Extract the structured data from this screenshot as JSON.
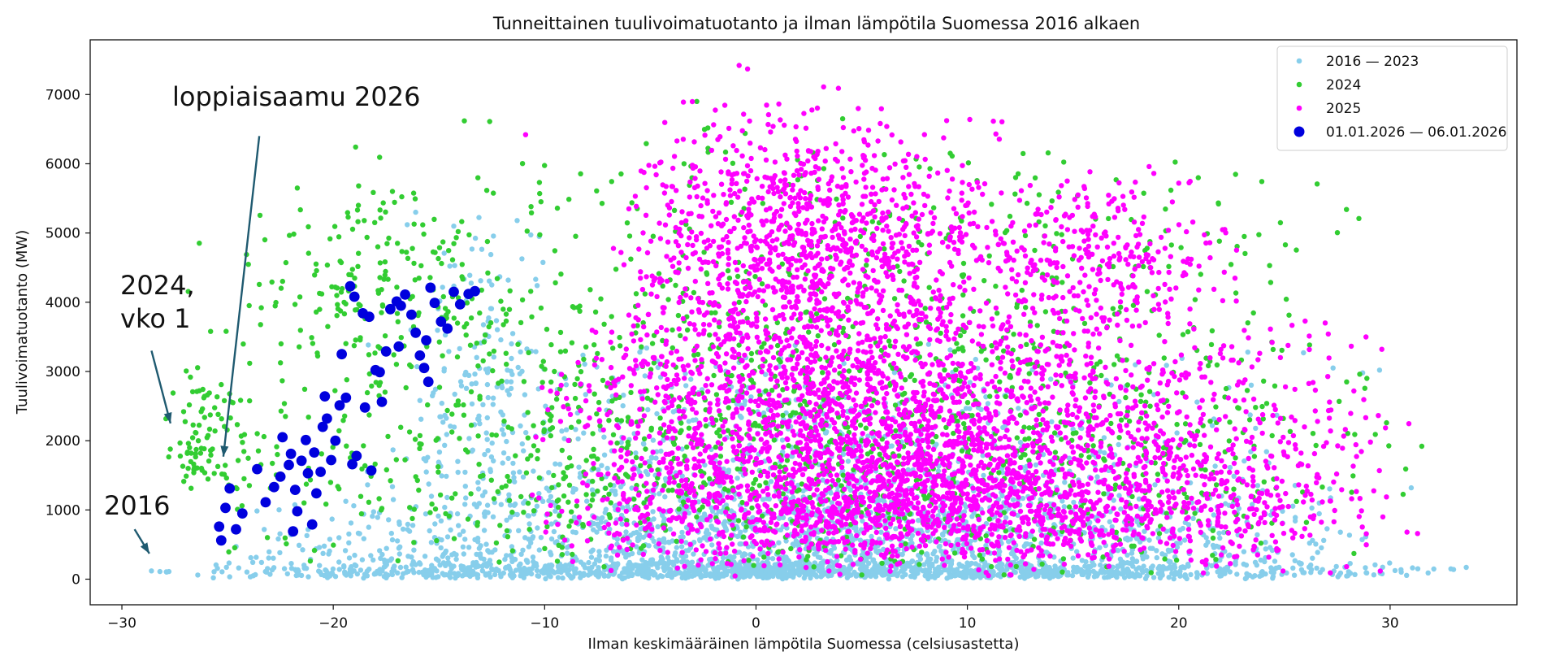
{
  "chart_data": {
    "type": "scatter",
    "title": "Tunneittainen tuulivoimatuotanto ja ilman lämpötila Suomessa 2016 alkaen",
    "xlabel": "Ilman keskimääräinen lämpötila Suomessa (celsiusastetta)",
    "ylabel": "Tuulivoimatuotanto (MW)",
    "xlim": [
      -31.5,
      36
    ],
    "ylim": [
      -370,
      7790
    ],
    "xticks": [
      -30,
      -20,
      -10,
      0,
      10,
      20,
      30
    ],
    "yticks": [
      0,
      1000,
      2000,
      3000,
      4000,
      5000,
      6000,
      7000
    ],
    "grid": false,
    "legend_position": "top-right",
    "series": [
      {
        "name": "2016 — 2023",
        "color": "#87ceeb",
        "marker_size": "small",
        "clusters": [
          {
            "x_range": [
              -28.5,
              33.5
            ],
            "y_range": [
              0,
              300
            ],
            "count": 1300,
            "x_mode": 2,
            "y_mode": 60
          },
          {
            "x_range": [
              -26,
              31
            ],
            "y_range": [
              0,
              1500
            ],
            "count": 1100,
            "x_mode": 3,
            "y_mode": 300
          },
          {
            "x_range": [
              -20,
              28
            ],
            "y_range": [
              100,
              3600
            ],
            "count": 950,
            "x_mode": 2,
            "y_mode": 900
          },
          {
            "x_range": [
              -17,
              -9
            ],
            "y_range": [
              1000,
              5300
            ],
            "count": 150,
            "x_mode": -13,
            "y_mode": 3000
          }
        ],
        "points": [
          {
            "x": -28.2,
            "y": 110
          },
          {
            "x": -28.6,
            "y": 120
          },
          {
            "x": -27.9,
            "y": 105
          },
          {
            "x": -16.1,
            "y": 5300
          },
          {
            "x": -16.5,
            "y": 5120
          },
          {
            "x": 29.5,
            "y": 3020
          },
          {
            "x": 33.6,
            "y": 170
          },
          {
            "x": 33.0,
            "y": 140
          },
          {
            "x": 31.0,
            "y": 1320
          },
          {
            "x": 28.7,
            "y": 2980
          },
          {
            "x": 27.3,
            "y": 3050
          },
          {
            "x": 25.9,
            "y": 3270
          },
          {
            "x": -12.5,
            "y": 4250
          },
          {
            "x": -11.3,
            "y": 5180
          }
        ]
      },
      {
        "name": "2024",
        "color": "#32cd32",
        "marker_size": "small",
        "clusters": [
          {
            "x_range": [
              -27.5,
              31.5
            ],
            "y_range": [
              0,
              6700
            ],
            "count": 1700,
            "x_mode": 3,
            "y_mode": 1200
          },
          {
            "x_range": [
              -28,
              -23
            ],
            "y_range": [
              1200,
              3200
            ],
            "count": 90,
            "x_mode": -26.5,
            "y_mode": 1700
          },
          {
            "x_range": [
              -23,
              -13
            ],
            "y_range": [
              2500,
              5800
            ],
            "count": 130,
            "x_mode": -18,
            "y_mode": 4200
          }
        ],
        "points": [
          {
            "x": -21.7,
            "y": 5650
          },
          {
            "x": -18.8,
            "y": 5680
          },
          {
            "x": -17.2,
            "y": 5600
          },
          {
            "x": -13.8,
            "y": 6620
          },
          {
            "x": -12.6,
            "y": 6610
          },
          {
            "x": -2.8,
            "y": 6900
          },
          {
            "x": 4.1,
            "y": 6650
          },
          {
            "x": 31.5,
            "y": 1920
          },
          {
            "x": 23.1,
            "y": 4950
          },
          {
            "x": 24.3,
            "y": 4530
          }
        ]
      },
      {
        "name": "2025",
        "color": "#ff00ff",
        "marker_size": "small",
        "clusters": [
          {
            "x_range": [
              -11,
              31.5
            ],
            "y_range": [
              0,
              4200
            ],
            "count": 3300,
            "x_mode": 6,
            "y_mode": 1000
          },
          {
            "x_range": [
              -7,
              13
            ],
            "y_range": [
              2000,
              7000
            ],
            "count": 1300,
            "x_mode": 2,
            "y_mode": 4800
          },
          {
            "x_range": [
              10,
              23
            ],
            "y_range": [
              3500,
              6100
            ],
            "count": 280,
            "x_mode": 15,
            "y_mode": 4600
          }
        ],
        "points": [
          {
            "x": -0.8,
            "y": 7420
          },
          {
            "x": -0.4,
            "y": 7370
          },
          {
            "x": 3.2,
            "y": 7110
          },
          {
            "x": 3.9,
            "y": 7090
          },
          {
            "x": 20.0,
            "y": 5720
          },
          {
            "x": 18.6,
            "y": 5960
          },
          {
            "x": 31.3,
            "y": 660
          },
          {
            "x": 30.8,
            "y": 680
          },
          {
            "x": -10.9,
            "y": 6420
          }
        ]
      },
      {
        "name": "01.01.2026 — 06.01.2026",
        "color": "#0000dd",
        "marker_size": "large",
        "points": [
          {
            "x": -25.3,
            "y": 560
          },
          {
            "x": -25.4,
            "y": 760
          },
          {
            "x": -25.1,
            "y": 1030
          },
          {
            "x": -24.9,
            "y": 1310
          },
          {
            "x": -24.6,
            "y": 720
          },
          {
            "x": -24.3,
            "y": 950
          },
          {
            "x": -23.6,
            "y": 1590
          },
          {
            "x": -22.8,
            "y": 1330
          },
          {
            "x": -22.5,
            "y": 1480
          },
          {
            "x": -22.1,
            "y": 1650
          },
          {
            "x": -22.0,
            "y": 1810
          },
          {
            "x": -21.8,
            "y": 1290
          },
          {
            "x": -21.7,
            "y": 980
          },
          {
            "x": -21.5,
            "y": 1710
          },
          {
            "x": -21.3,
            "y": 2010
          },
          {
            "x": -21.2,
            "y": 1530
          },
          {
            "x": -20.9,
            "y": 1830
          },
          {
            "x": -20.6,
            "y": 1550
          },
          {
            "x": -20.5,
            "y": 2200
          },
          {
            "x": -20.3,
            "y": 2320
          },
          {
            "x": -20.1,
            "y": 1720
          },
          {
            "x": -19.7,
            "y": 2510
          },
          {
            "x": -19.4,
            "y": 2620
          },
          {
            "x": -19.1,
            "y": 1660
          },
          {
            "x": -18.9,
            "y": 1780
          },
          {
            "x": -19.6,
            "y": 3250
          },
          {
            "x": -19.2,
            "y": 4230
          },
          {
            "x": -19.0,
            "y": 4080
          },
          {
            "x": -18.6,
            "y": 3840
          },
          {
            "x": -18.3,
            "y": 3790
          },
          {
            "x": -18.0,
            "y": 3020
          },
          {
            "x": -17.8,
            "y": 2990
          },
          {
            "x": -17.5,
            "y": 3290
          },
          {
            "x": -17.3,
            "y": 3900
          },
          {
            "x": -17.0,
            "y": 4010
          },
          {
            "x": -16.8,
            "y": 3950
          },
          {
            "x": -16.6,
            "y": 4110
          },
          {
            "x": -16.3,
            "y": 3820
          },
          {
            "x": -16.1,
            "y": 3560
          },
          {
            "x": -15.9,
            "y": 3230
          },
          {
            "x": -15.7,
            "y": 3050
          },
          {
            "x": -15.5,
            "y": 2850
          },
          {
            "x": -15.4,
            "y": 4210
          },
          {
            "x": -15.2,
            "y": 3990
          },
          {
            "x": -14.9,
            "y": 3720
          },
          {
            "x": -14.6,
            "y": 3620
          },
          {
            "x": -14.3,
            "y": 4150
          },
          {
            "x": -14.0,
            "y": 3970
          },
          {
            "x": -13.6,
            "y": 4120
          },
          {
            "x": -13.3,
            "y": 4160
          },
          {
            "x": -18.5,
            "y": 2480
          },
          {
            "x": -17.7,
            "y": 2560
          },
          {
            "x": -23.2,
            "y": 1110
          },
          {
            "x": -20.8,
            "y": 1240
          },
          {
            "x": -21.0,
            "y": 790
          },
          {
            "x": -21.9,
            "y": 690
          },
          {
            "x": -18.2,
            "y": 1570
          },
          {
            "x": -16.9,
            "y": 3360
          },
          {
            "x": -15.6,
            "y": 3450
          },
          {
            "x": -20.4,
            "y": 2640
          },
          {
            "x": -19.9,
            "y": 2000
          },
          {
            "x": -22.4,
            "y": 2050
          }
        ]
      }
    ]
  },
  "annotations": [
    {
      "text": "loppiaisaamu 2026",
      "tail": [
        -23.5,
        6400
      ],
      "head": [
        -25.2,
        1770
      ]
    },
    {
      "text": "2024,\nvko 1",
      "tail": [
        -28.6,
        3300
      ],
      "head": [
        -27.7,
        2250
      ]
    },
    {
      "text": "2016",
      "tail": [
        -29.4,
        720
      ],
      "head": [
        -28.7,
        370
      ]
    }
  ]
}
